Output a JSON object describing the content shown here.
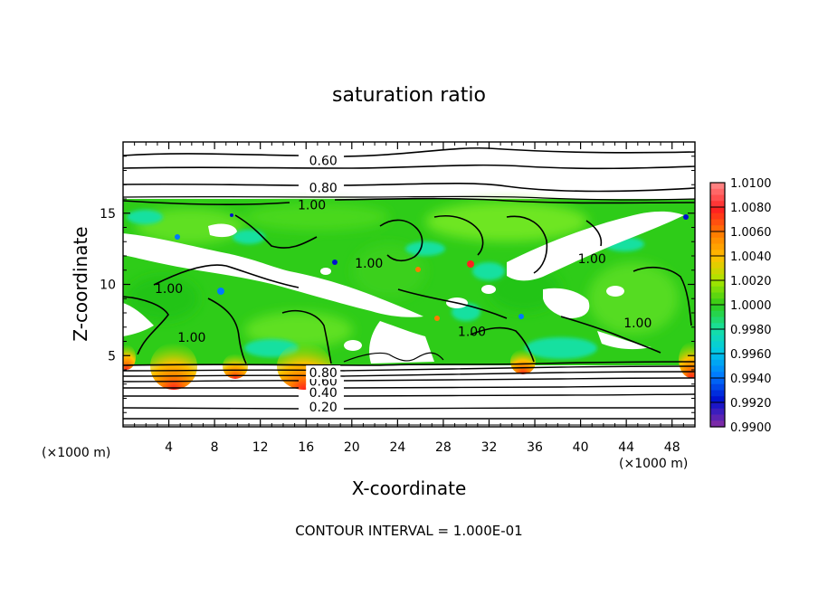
{
  "chart_data": {
    "type": "heatmap",
    "title": "saturation ratio",
    "xlabel": "X-coordinate",
    "ylabel": "Z-coordinate",
    "x_unit": "(×1000 m)",
    "z_unit": "(×1000 m)",
    "footer": "CONTOUR INTERVAL = 1.000E-01",
    "xlim": [
      0,
      50
    ],
    "zlim": [
      0,
      20
    ],
    "x_ticks": [
      4,
      8,
      12,
      16,
      20,
      24,
      28,
      32,
      36,
      40,
      44,
      48
    ],
    "z_ticks": [
      5,
      10,
      15
    ],
    "colorbar": {
      "min": 0.99,
      "max": 1.01,
      "labels": [
        "1.0100",
        "1.0080",
        "1.0060",
        "1.0040",
        "1.0020",
        "1.0000",
        "0.9980",
        "0.9960",
        "0.9940",
        "0.9920",
        "0.9900"
      ],
      "colors": [
        "#ff8080",
        "#ff2020",
        "#ff7a00",
        "#ffc000",
        "#a8e600",
        "#2ecc18",
        "#18e0a0",
        "#00c8e8",
        "#0078ff",
        "#0010d0",
        "#7a2aa8"
      ]
    },
    "contour_labels": [
      {
        "text": "0.60",
        "x": 17.5,
        "z": 18.7
      },
      {
        "text": "0.80",
        "x": 17.5,
        "z": 16.8
      },
      {
        "text": "1.00",
        "x": 16.5,
        "z": 15.6
      },
      {
        "text": "1.00",
        "x": 4.0,
        "z": 9.7
      },
      {
        "text": "1.00",
        "x": 6.0,
        "z": 6.3
      },
      {
        "text": "1.00",
        "x": 21.5,
        "z": 11.5
      },
      {
        "text": "1.00",
        "x": 30.5,
        "z": 6.7
      },
      {
        "text": "1.00",
        "x": 41.0,
        "z": 11.8
      },
      {
        "text": "1.00",
        "x": 45.0,
        "z": 7.3
      },
      {
        "text": "0.20",
        "x": 17.5,
        "z": 1.4
      },
      {
        "text": "0.40",
        "x": 17.5,
        "z": 2.4
      },
      {
        "text": "0.60",
        "x": 17.5,
        "z": 3.2
      },
      {
        "text": "0.80",
        "x": 17.5,
        "z": 3.8
      }
    ]
  }
}
